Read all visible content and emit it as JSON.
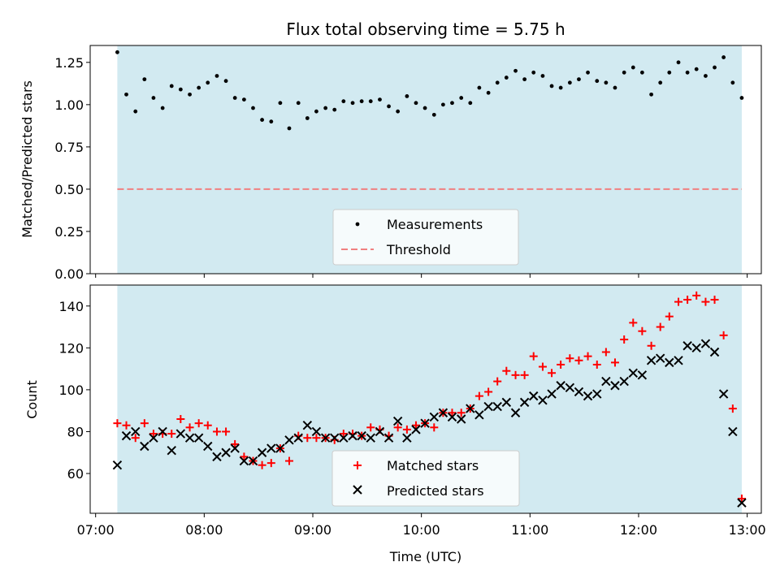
{
  "chart_data": [
    {
      "type": "scatter",
      "title": "Flux total observing time = 5.75 h",
      "xlabel": "",
      "ylabel": "Matched/Predicted stars",
      "ylim": [
        0,
        1.35
      ],
      "yticks": [
        0.0,
        0.25,
        0.5,
        0.75,
        1.0,
        1.25
      ],
      "ytick_labels": [
        "0.00",
        "0.25",
        "0.50",
        "0.75",
        "1.00",
        "1.25"
      ],
      "xlim_hours": [
        6.95,
        13.13
      ],
      "shaded_span_hours": [
        7.2,
        12.95
      ],
      "shade_color": "#add8e6",
      "threshold": 0.5,
      "threshold_color": "#f08080",
      "legend_position": "lower-center",
      "legend": [
        "Measurements",
        "Threshold"
      ],
      "series": [
        {
          "name": "Measurements",
          "x_hours": [
            7.2,
            7.283,
            7.367,
            7.45,
            7.533,
            7.617,
            7.7,
            7.783,
            7.867,
            7.95,
            8.033,
            8.117,
            8.2,
            8.283,
            8.367,
            8.45,
            8.533,
            8.617,
            8.7,
            8.783,
            8.867,
            8.95,
            9.033,
            9.117,
            9.2,
            9.283,
            9.367,
            9.45,
            9.533,
            9.617,
            9.7,
            9.783,
            9.867,
            9.95,
            10.033,
            10.117,
            10.2,
            10.283,
            10.367,
            10.45,
            10.533,
            10.617,
            10.7,
            10.783,
            10.867,
            10.95,
            11.033,
            11.117,
            11.2,
            11.283,
            11.367,
            11.45,
            11.533,
            11.617,
            11.7,
            11.783,
            11.867,
            11.95,
            12.033,
            12.117,
            12.2,
            12.283,
            12.367,
            12.45,
            12.533,
            12.617,
            12.7,
            12.783,
            12.867,
            12.95
          ],
          "values": [
            1.31,
            1.06,
            0.96,
            1.15,
            1.04,
            0.98,
            1.11,
            1.09,
            1.06,
            1.1,
            1.13,
            1.17,
            1.14,
            1.04,
            1.03,
            0.98,
            0.91,
            0.9,
            1.01,
            0.86,
            1.01,
            0.92,
            0.96,
            0.98,
            0.97,
            1.02,
            1.01,
            1.02,
            1.02,
            1.03,
            0.99,
            0.96,
            1.05,
            1.01,
            0.98,
            0.94,
            1.0,
            1.01,
            1.04,
            1.01,
            1.1,
            1.07,
            1.13,
            1.16,
            1.2,
            1.15,
            1.19,
            1.17,
            1.11,
            1.1,
            1.13,
            1.15,
            1.19,
            1.14,
            1.13,
            1.1,
            1.19,
            1.22,
            1.19,
            1.06,
            1.13,
            1.19,
            1.25,
            1.19,
            1.21,
            1.17,
            1.22,
            1.28,
            1.13,
            1.04
          ]
        }
      ]
    },
    {
      "type": "scatter",
      "title": "",
      "xlabel": "Time (UTC)",
      "ylabel": "Count",
      "ylim": [
        41,
        150
      ],
      "yticks": [
        60,
        80,
        100,
        120,
        140
      ],
      "ytick_labels": [
        "60",
        "80",
        "100",
        "120",
        "140"
      ],
      "xticks_hours": [
        7,
        8,
        9,
        10,
        11,
        12,
        13
      ],
      "xtick_labels": [
        "07:00",
        "08:00",
        "09:00",
        "10:00",
        "11:00",
        "12:00",
        "13:00"
      ],
      "xlim_hours": [
        6.95,
        13.13
      ],
      "shaded_span_hours": [
        7.2,
        12.95
      ],
      "shade_color": "#add8e6",
      "legend_position": "lower-center",
      "legend": [
        "Matched stars",
        "Predicted stars"
      ],
      "series": [
        {
          "name": "Matched stars",
          "color": "#ff0000",
          "marker": "plus",
          "x_hours": [
            7.2,
            7.283,
            7.367,
            7.45,
            7.533,
            7.617,
            7.7,
            7.783,
            7.867,
            7.95,
            8.033,
            8.117,
            8.2,
            8.283,
            8.367,
            8.45,
            8.533,
            8.617,
            8.7,
            8.783,
            8.867,
            8.95,
            9.033,
            9.117,
            9.2,
            9.283,
            9.367,
            9.45,
            9.533,
            9.617,
            9.7,
            9.783,
            9.867,
            9.95,
            10.033,
            10.117,
            10.2,
            10.283,
            10.367,
            10.45,
            10.533,
            10.617,
            10.7,
            10.783,
            10.867,
            10.95,
            11.033,
            11.117,
            11.2,
            11.283,
            11.367,
            11.45,
            11.533,
            11.617,
            11.7,
            11.783,
            11.867,
            11.95,
            12.033,
            12.117,
            12.2,
            12.283,
            12.367,
            12.45,
            12.533,
            12.617,
            12.7,
            12.783,
            12.867,
            12.95
          ],
          "values": [
            84,
            83,
            77,
            84,
            79,
            79,
            79,
            86,
            82,
            84,
            83,
            80,
            80,
            74,
            68,
            66,
            64,
            65,
            72,
            66,
            78,
            77,
            77,
            77,
            76,
            79,
            79,
            78,
            82,
            81,
            78,
            82,
            81,
            83,
            84,
            82,
            89,
            89,
            89,
            91,
            97,
            99,
            104,
            109,
            107,
            107,
            116,
            111,
            108,
            112,
            115,
            114,
            116,
            112,
            118,
            113,
            124,
            132,
            128,
            121,
            130,
            135,
            142,
            143,
            145,
            142,
            143,
            126,
            91,
            48
          ]
        },
        {
          "name": "Predicted stars",
          "color": "#000000",
          "marker": "x",
          "x_hours": [
            7.2,
            7.283,
            7.367,
            7.45,
            7.533,
            7.617,
            7.7,
            7.783,
            7.867,
            7.95,
            8.033,
            8.117,
            8.2,
            8.283,
            8.367,
            8.45,
            8.533,
            8.617,
            8.7,
            8.783,
            8.867,
            8.95,
            9.033,
            9.117,
            9.2,
            9.283,
            9.367,
            9.45,
            9.533,
            9.617,
            9.7,
            9.783,
            9.867,
            9.95,
            10.033,
            10.117,
            10.2,
            10.283,
            10.367,
            10.45,
            10.533,
            10.617,
            10.7,
            10.783,
            10.867,
            10.95,
            11.033,
            11.117,
            11.2,
            11.283,
            11.367,
            11.45,
            11.533,
            11.617,
            11.7,
            11.783,
            11.867,
            11.95,
            12.033,
            12.117,
            12.2,
            12.283,
            12.367,
            12.45,
            12.533,
            12.617,
            12.7,
            12.783,
            12.867,
            12.95
          ],
          "values": [
            64,
            78,
            80,
            73,
            77,
            80,
            71,
            79,
            77,
            77,
            73,
            68,
            70,
            72,
            66,
            66,
            70,
            72,
            72,
            76,
            77,
            83,
            80,
            77,
            77,
            77,
            78,
            78,
            77,
            80,
            77,
            85,
            77,
            81,
            84,
            87,
            89,
            87,
            86,
            91,
            88,
            92,
            92,
            94,
            89,
            94,
            97,
            95,
            98,
            102,
            101,
            99,
            97,
            98,
            104,
            102,
            104,
            108,
            107,
            114,
            115,
            113,
            114,
            121,
            120,
            122,
            118,
            98,
            80,
            46
          ]
        }
      ]
    }
  ]
}
